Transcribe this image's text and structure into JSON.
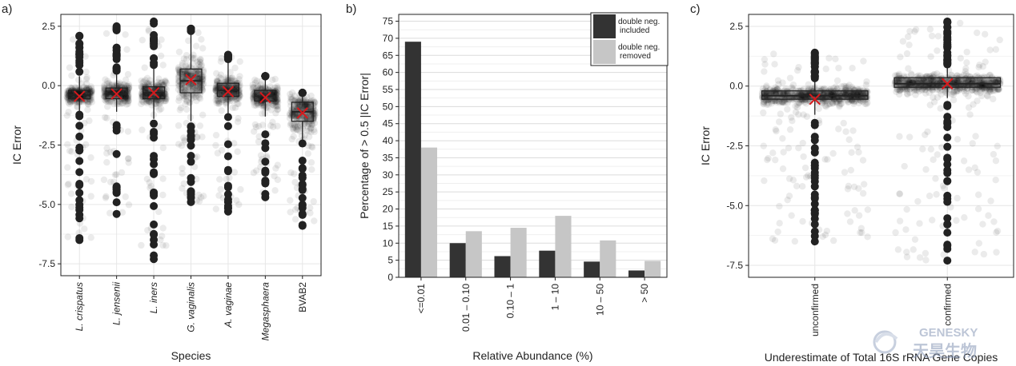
{
  "chart_data": [
    {
      "type": "boxplot",
      "panel_label": "a)",
      "xlabel": "Species",
      "ylabel": "IC Error",
      "categories": [
        "L. crispatus",
        "L. jensenii",
        "L. iners",
        "G. vaginalis",
        "A. vaginae",
        "Megasphaera",
        "BVAB2"
      ],
      "category_italic": [
        true,
        true,
        true,
        true,
        true,
        true,
        false
      ],
      "yticks": [
        2.5,
        0.0,
        -2.5,
        -5.0,
        -7.5
      ],
      "ytick_labels": [
        "2.5",
        "0.0",
        "-2.5",
        "-5.0",
        "-7.5"
      ],
      "ylim": [
        -8.0,
        3.0
      ],
      "boxes": [
        {
          "q1": -0.55,
          "median": -0.4,
          "q3": -0.2,
          "whisker_low": -1.2,
          "whisker_high": 0.4,
          "mean": -0.45,
          "spread": [
            -6.5,
            2.1
          ]
        },
        {
          "q1": -0.55,
          "median": -0.35,
          "q3": -0.1,
          "whisker_low": -1.1,
          "whisker_high": 0.6,
          "mean": -0.35,
          "spread": [
            -5.4,
            2.5
          ]
        },
        {
          "q1": -0.55,
          "median": -0.3,
          "q3": -0.05,
          "whisker_low": -1.4,
          "whisker_high": 0.8,
          "mean": -0.3,
          "spread": [
            -7.3,
            2.7
          ]
        },
        {
          "q1": -0.3,
          "median": 0.2,
          "q3": 0.7,
          "whisker_low": -1.5,
          "whisker_high": 2.3,
          "mean": 0.25,
          "spread": [
            -4.9,
            2.4
          ]
        },
        {
          "q1": -0.45,
          "median": -0.2,
          "q3": 0.1,
          "whisker_low": -1.2,
          "whisker_high": 1.1,
          "mean": -0.25,
          "spread": [
            -5.3,
            1.3
          ]
        },
        {
          "q1": -0.65,
          "median": -0.45,
          "q3": -0.2,
          "whisker_low": -1.3,
          "whisker_high": 0.4,
          "mean": -0.5,
          "spread": [
            -4.7,
            0.4
          ]
        },
        {
          "q1": -1.5,
          "median": -1.1,
          "q3": -0.7,
          "whisker_low": -2.3,
          "whisker_high": -0.3,
          "mean": -1.15,
          "spread": [
            -5.9,
            -0.3
          ]
        }
      ],
      "point_color": "#000000",
      "mean_marker_color": "#d7191c"
    },
    {
      "type": "bar",
      "panel_label": "b)",
      "xlabel": "Relative Abundance (%)",
      "ylabel": "Percentage of > 0.5 |IC Error|",
      "categories": [
        "<=0.01",
        "0.01 – 0.10",
        "0.10 – 1",
        "1 – 10",
        "10 – 50",
        "> 50"
      ],
      "series": [
        {
          "name": "double neg. included",
          "color": "#333333",
          "values": [
            69.0,
            10.0,
            6.2,
            7.8,
            4.6,
            2.0
          ]
        },
        {
          "name": "double neg. removed",
          "color": "#c6c6c6",
          "values": [
            38.0,
            13.5,
            14.5,
            18.0,
            10.8,
            4.8
          ]
        }
      ],
      "legend_lines": [
        [
          "double neg.",
          "included"
        ],
        [
          "double neg.",
          "removed"
        ]
      ],
      "yticks": [
        0,
        5,
        10,
        15,
        20,
        25,
        30,
        35,
        40,
        45,
        50,
        55,
        60,
        65,
        70,
        75
      ],
      "ylim": [
        0,
        77
      ],
      "legend": "top-right",
      "grid": true
    },
    {
      "type": "boxplot",
      "panel_label": "c)",
      "xlabel": "Underestimate of Total 16S rRNA Gene Copies",
      "ylabel": "IC Error",
      "categories": [
        "unconfirmed",
        "confirmed"
      ],
      "category_italic": [
        false,
        false
      ],
      "yticks": [
        2.5,
        0.0,
        -2.5,
        -5.0,
        -7.5
      ],
      "ytick_labels": [
        "2.5",
        "0.0",
        "-2.5",
        "-5.0",
        "-7.5"
      ],
      "ylim": [
        -8.0,
        3.0
      ],
      "boxes": [
        {
          "q1": -0.55,
          "median": -0.4,
          "q3": -0.2,
          "whisker_low": -1.2,
          "whisker_high": 0.3,
          "mean": -0.55,
          "spread": [
            -6.5,
            1.4
          ]
        },
        {
          "q1": -0.05,
          "median": 0.1,
          "q3": 0.35,
          "whisker_low": -0.5,
          "whisker_high": 0.9,
          "mean": 0.1,
          "spread": [
            -7.3,
            2.7
          ]
        }
      ],
      "point_color": "#000000",
      "mean_marker_color": "#d7191c"
    }
  ],
  "watermark": {
    "latin": "GENESKY",
    "chinese": "天昊生物"
  }
}
